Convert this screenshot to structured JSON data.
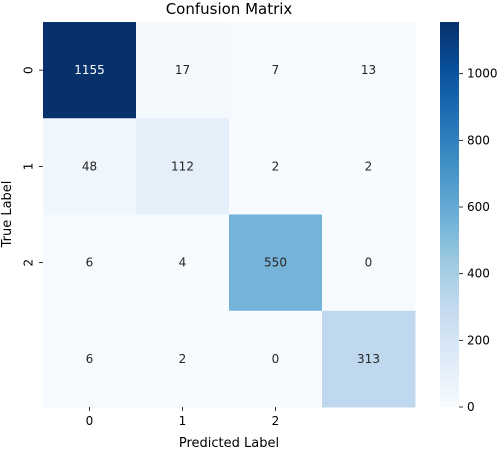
{
  "chart_data": {
    "type": "heatmap",
    "title": "Confusion Matrix",
    "xlabel": "Predicted Label",
    "ylabel": "True Label",
    "x_tick_labels": [
      "0",
      "1",
      "2",
      ""
    ],
    "y_tick_labels": [
      "0",
      "1",
      "2",
      ""
    ],
    "matrix": [
      [
        1155,
        17,
        7,
        13
      ],
      [
        48,
        112,
        2,
        2
      ],
      [
        6,
        4,
        550,
        0
      ],
      [
        6,
        2,
        0,
        313
      ]
    ],
    "colormap": "Blues",
    "vmin": 0,
    "vmax": 1155,
    "colorbar_ticks": [
      0,
      200,
      400,
      600,
      800,
      1000
    ]
  }
}
